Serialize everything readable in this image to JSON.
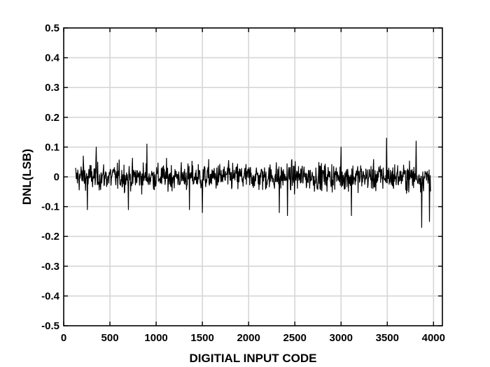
{
  "chart_data": {
    "type": "line",
    "title": "",
    "xlabel": "DIGITIAL INPUT CODE",
    "ylabel": "DNL(LSB)",
    "xlim": [
      0,
      4096
    ],
    "ylim": [
      -0.5,
      0.5
    ],
    "x_ticks": [
      0,
      500,
      1000,
      1500,
      2000,
      2500,
      3000,
      3500,
      4000
    ],
    "y_ticks": [
      0.5,
      0.4,
      0.3,
      0.2,
      0.1,
      0,
      -0.1,
      -0.2,
      -0.3,
      -0.4,
      -0.5
    ],
    "x_tick_labels": [
      "0",
      "500",
      "1000",
      "1500",
      "2000",
      "2500",
      "3000",
      "3500",
      "4000"
    ],
    "y_tick_labels": [
      "0.5",
      "0.4",
      "0.3",
      "0.2",
      "0.1",
      "0",
      "-0.1",
      "-0.2",
      "-0.3",
      "-0.4",
      "-0.5"
    ],
    "grid": true,
    "series": [
      {
        "x_range": [
          128,
          3968
        ],
        "approx_amplitude": 0.07,
        "peak_values": [
          {
            "x": 210,
            "y": 0.07
          },
          {
            "x": 255,
            "y": -0.11
          },
          {
            "x": 350,
            "y": 0.1
          },
          {
            "x": 700,
            "y": -0.11
          },
          {
            "x": 900,
            "y": 0.11
          },
          {
            "x": 1360,
            "y": -0.11
          },
          {
            "x": 1500,
            "y": -0.12
          },
          {
            "x": 2330,
            "y": -0.12
          },
          {
            "x": 2420,
            "y": -0.13
          },
          {
            "x": 3000,
            "y": 0.1
          },
          {
            "x": 3110,
            "y": -0.13
          },
          {
            "x": 3490,
            "y": 0.13
          },
          {
            "x": 3810,
            "y": 0.12
          },
          {
            "x": 3870,
            "y": -0.17
          },
          {
            "x": 3955,
            "y": -0.15
          }
        ]
      }
    ]
  }
}
